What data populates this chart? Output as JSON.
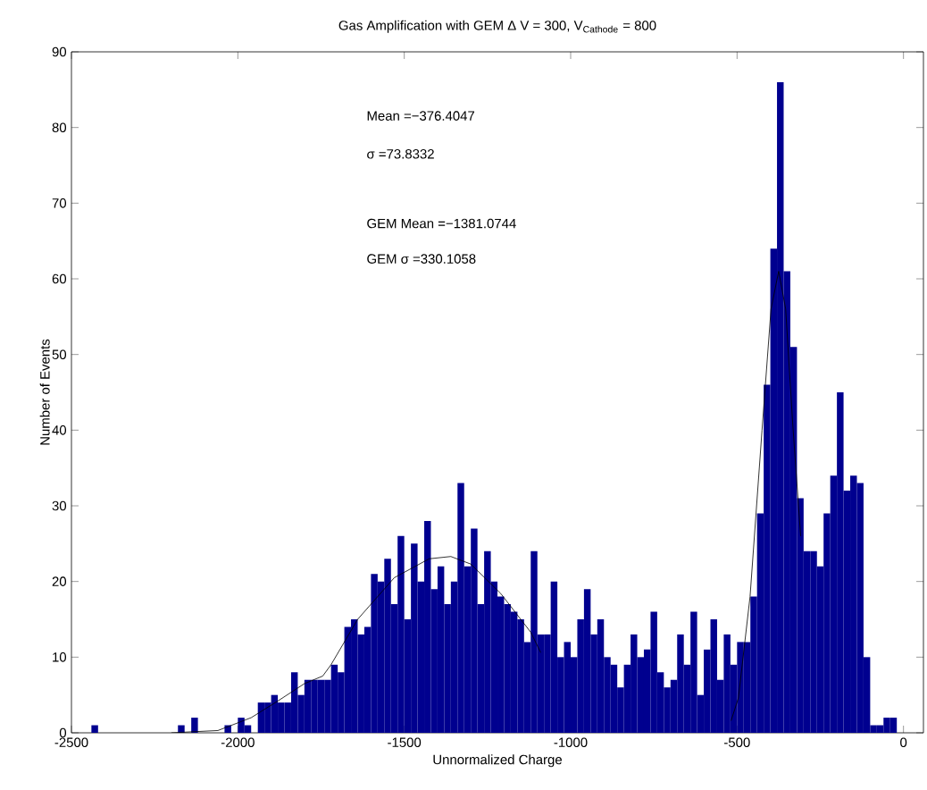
{
  "chart_data": {
    "type": "histogram",
    "title": "Gas Amplification with GEM Δ V = 300, V$_{Cathode}$ = 800",
    "xlabel": "Unnormalized Charge",
    "ylabel": "Number of Events",
    "annotations": [
      "Mean =−376.4047",
      "σ =73.8332",
      "GEM Mean  =−1381.0744",
      "GEM σ =330.1058"
    ],
    "bins": [
      -2460,
      -2440,
      -2420,
      -2400,
      -2380,
      -2360,
      -2340,
      -2320,
      -2300,
      -2280,
      -2260,
      -2240,
      -2220,
      -2200,
      -2180,
      -2160,
      -2140,
      -2120,
      -2100,
      -2080,
      -2060,
      -2040,
      -2020,
      -2000,
      -1980,
      -1960,
      -1940,
      -1920,
      -1900,
      -1880,
      -1860,
      -1840,
      -1820,
      -1800,
      -1780,
      -1760,
      -1740,
      -1720,
      -1700,
      -1680,
      -1660,
      -1640,
      -1620,
      -1600,
      -1580,
      -1560,
      -1540,
      -1520,
      -1500,
      -1480,
      -1460,
      -1440,
      -1420,
      -1400,
      -1380,
      -1360,
      -1340,
      -1320,
      -1300,
      -1280,
      -1260,
      -1240,
      -1220,
      -1200,
      -1180,
      -1160,
      -1140,
      -1120,
      -1100,
      -1080,
      -1060,
      -1040,
      -1020,
      -1000,
      -980,
      -960,
      -940,
      -920,
      -900,
      -880,
      -860,
      -840,
      -820,
      -800,
      -780,
      -760,
      -740,
      -720,
      -700,
      -680,
      -660,
      -640,
      -620,
      -600,
      -580,
      -560,
      -540,
      -520,
      -500,
      -480,
      -460,
      -440,
      -420,
      -400,
      -380,
      -360,
      -340,
      -320,
      -300,
      -280,
      -260,
      -240,
      -220,
      -200,
      -180,
      -160,
      -140,
      -120,
      -100,
      -80,
      -60,
      -40,
      -20
    ],
    "values": [
      0,
      1,
      0,
      0,
      0,
      0,
      0,
      0,
      0,
      0,
      0,
      0,
      0,
      0,
      1,
      0,
      2,
      0,
      0,
      0,
      0,
      1,
      0,
      2,
      1,
      0,
      4,
      4,
      5,
      4,
      4,
      8,
      5,
      7,
      7,
      7,
      7,
      9,
      8,
      14,
      15,
      13,
      14,
      21,
      20,
      23,
      17,
      26,
      15,
      25,
      20,
      28,
      19,
      22,
      17,
      20,
      33,
      22,
      27,
      17,
      24,
      20,
      18,
      17,
      16,
      15,
      12,
      24,
      13,
      13,
      20,
      10,
      12,
      10,
      15,
      19,
      13,
      15,
      10,
      9,
      6,
      9,
      13,
      10,
      11,
      16,
      8,
      6,
      7,
      13,
      9,
      16,
      5,
      11,
      15,
      7,
      13,
      9,
      12,
      12,
      18,
      29,
      46,
      64,
      86,
      61,
      51,
      31,
      24,
      24,
      22,
      29,
      34,
      45,
      32,
      34,
      33,
      10,
      1,
      1,
      2,
      2
    ],
    "color": "#00008f",
    "series": [
      {
        "type": "line",
        "color": "#000000",
        "x": [
          -2200,
          -2060,
          -1960,
          -1880,
          -1800,
          -1745,
          -1720,
          -1640,
          -1530,
          -1425,
          -1360,
          -1300,
          -1210,
          -1120,
          -1090
        ],
        "values": [
          0,
          0.3,
          2,
          4.2,
          6.5,
          7.5,
          9,
          15,
          20.5,
          23,
          23.3,
          22.3,
          18.4,
          13.3,
          10.6
        ]
      },
      {
        "type": "line",
        "color": "#000000",
        "x": [
          -518,
          -496,
          -461,
          -425,
          -398,
          -375,
          -354,
          -333,
          -309
        ],
        "values": [
          1.6,
          4.6,
          18,
          40,
          56,
          61,
          56,
          41,
          26
        ]
      }
    ],
    "xlim": [
      -2500,
      60
    ],
    "ylim": [
      0,
      90
    ],
    "xticks": [
      -2500,
      -2000,
      -1500,
      -1000,
      -500,
      0
    ],
    "yticks": [
      0,
      10,
      20,
      30,
      40,
      50,
      60,
      70,
      80,
      90
    ]
  }
}
